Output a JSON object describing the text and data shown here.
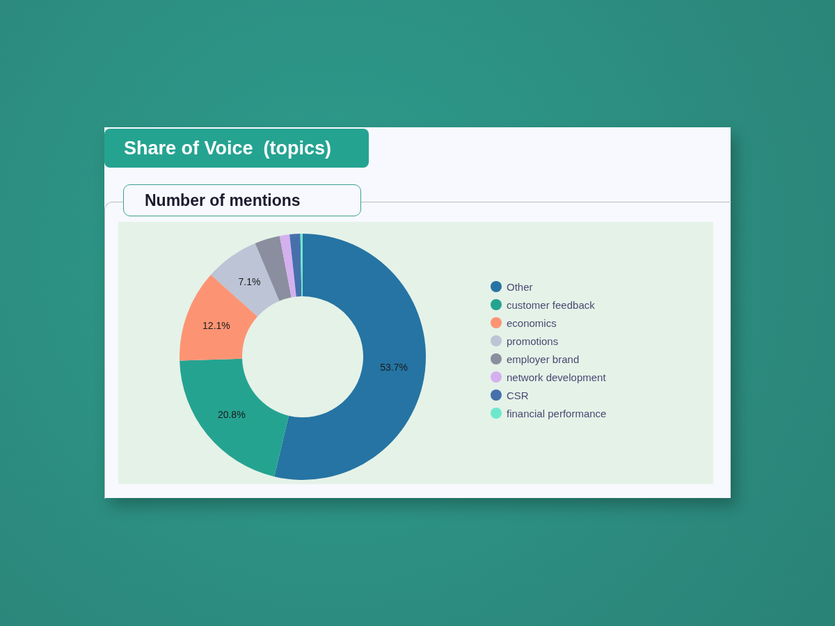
{
  "chart_data": {
    "type": "donut",
    "title": "Share of Voice  (topics)",
    "subtitle": "Number of mentions",
    "categories": [
      "Other",
      "customer feedback",
      "economics",
      "promotions",
      "employer brand",
      "network development",
      "CSR",
      "financial performance"
    ],
    "values": [
      53.7,
      20.8,
      12.1,
      7.1,
      3.3,
      1.3,
      1.4,
      0.3
    ],
    "colors": [
      "#2574a3",
      "#25a391",
      "#fc9474",
      "#bcc4d6",
      "#8a8e9e",
      "#d4b0ee",
      "#4670ac",
      "#6ee8cd"
    ],
    "value_labels": [
      "53.7%",
      "20.8%",
      "12.1%",
      "7.1%",
      null,
      null,
      null,
      null
    ],
    "legend": "right"
  }
}
